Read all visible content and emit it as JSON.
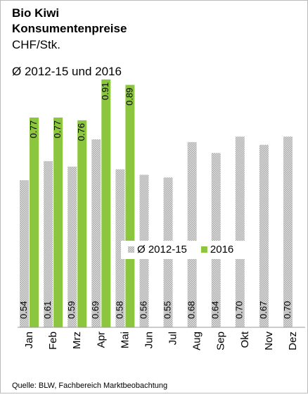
{
  "chart_data": {
    "type": "bar",
    "title": [
      "Bio Kiwi",
      "Konsumentenpreise"
    ],
    "subtitle": [
      "CHF/Stk.",
      "Ø 2012-15 und 2016"
    ],
    "categories": [
      "Jan",
      "Feb",
      "Mrz",
      "Apr",
      "Mai",
      "Jun",
      "Jul",
      "Aug",
      "Sep",
      "Okt",
      "Nov",
      "Dez"
    ],
    "series": [
      {
        "name": "Ø 2012-15",
        "color": "#bfbfbf",
        "values": [
          0.54,
          0.61,
          0.59,
          0.69,
          0.58,
          0.56,
          0.55,
          0.68,
          0.64,
          0.7,
          0.67,
          0.7
        ],
        "value_labels": [
          "0.54",
          "0.61",
          "0.59",
          "0.69",
          "0.58",
          "0.56",
          "0.55",
          "0.68",
          "0.64",
          "0.70",
          "0.67",
          "0.70"
        ]
      },
      {
        "name": "2016",
        "color": "#8cc63f",
        "values": [
          0.77,
          0.77,
          0.76,
          0.91,
          0.89,
          null,
          null,
          null,
          null,
          null,
          null,
          null
        ],
        "value_labels": [
          "0.77",
          "0.77",
          "0.76",
          "0.91",
          "0.89",
          null,
          null,
          null,
          null,
          null,
          null,
          null
        ]
      }
    ],
    "ylim": [
      0,
      1
    ],
    "source": "Quelle: BLW, Fachbereich Marktbeobachtung"
  }
}
